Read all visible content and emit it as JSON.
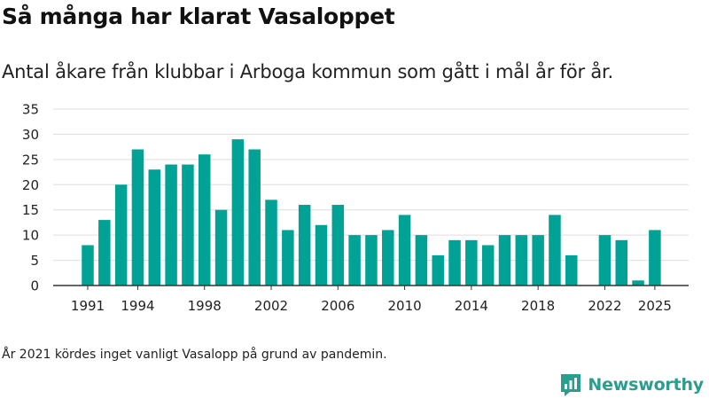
{
  "header": {
    "title": "Så många har klarat Vasaloppet",
    "subtitle": "Antal åkare från klubbar i Arboga kommun som gått i mål år för år."
  },
  "footnote": "År 2021 kördes inget vanligt Vasalopp på grund av pandemin.",
  "brand": {
    "name": "Newsworthy",
    "icon": "newsworthy-logo-icon"
  },
  "colors": {
    "bar": "#00a295",
    "grid": "#dddddd",
    "axis": "#333333",
    "brand": "#2a9d8f"
  },
  "chart_data": {
    "type": "bar",
    "title": "Så många har klarat Vasaloppet",
    "xlabel": "",
    "ylabel": "",
    "ylim": [
      0,
      35
    ],
    "yticks": [
      0,
      5,
      10,
      15,
      20,
      25,
      30,
      35
    ],
    "xticks": [
      1991,
      1994,
      1998,
      2002,
      2006,
      2010,
      2014,
      2018,
      2022,
      2025
    ],
    "grid": true,
    "categories": [
      1991,
      1992,
      1993,
      1994,
      1995,
      1996,
      1997,
      1998,
      1999,
      2000,
      2001,
      2002,
      2003,
      2004,
      2005,
      2006,
      2007,
      2008,
      2009,
      2010,
      2011,
      2012,
      2013,
      2014,
      2015,
      2016,
      2017,
      2018,
      2019,
      2020,
      2021,
      2022,
      2023,
      2024,
      2025
    ],
    "values": [
      8,
      13,
      20,
      27,
      23,
      24,
      24,
      26,
      15,
      29,
      27,
      17,
      11,
      16,
      12,
      16,
      10,
      10,
      11,
      14,
      10,
      6,
      9,
      9,
      8,
      10,
      10,
      10,
      14,
      6,
      null,
      10,
      9,
      1,
      11
    ]
  }
}
